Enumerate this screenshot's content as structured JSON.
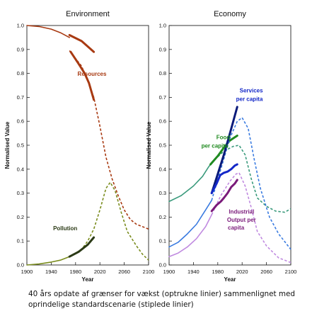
{
  "caption": {
    "line1": "40 års opdate af grænser for vækst (optrukne linier) sammenlignet med",
    "line2": "oprindelige standardscenarie (stiplede linier)"
  },
  "chart_data": [
    {
      "type": "line",
      "title": "Environment",
      "xlabel": "Year",
      "ylabel": "Normalised Value",
      "xlim": [
        1900,
        2100
      ],
      "ylim": [
        0,
        1
      ],
      "xticks": [
        "1900",
        "1940",
        "1980",
        "2020",
        "2060",
        "2100"
      ],
      "yticks": [
        "0.0",
        "0.1",
        "0.2",
        "0.3",
        "0.4",
        "0.5",
        "0.6",
        "0.7",
        "0.8",
        "0.9",
        "1.0"
      ],
      "grid": false,
      "series": [
        {
          "name": "Resources",
          "color": "#a83a12",
          "style": "solid",
          "points": [
            [
              1900,
              1.0
            ],
            [
              1920,
              0.996
            ],
            [
              1940,
              0.985
            ],
            [
              1955,
              0.97
            ],
            [
              1970,
              0.95
            ]
          ]
        },
        {
          "name": "Resources",
          "color": "#a83a12",
          "style": "dashed",
          "points": [
            [
              1970,
              0.895
            ],
            [
              1990,
              0.83
            ],
            [
              2000,
              0.77
            ],
            [
              2010,
              0.7
            ],
            [
              2020,
              0.58
            ],
            [
              2030,
              0.45
            ],
            [
              2040,
              0.36
            ],
            [
              2050,
              0.29
            ],
            [
              2060,
              0.23
            ],
            [
              2070,
              0.19
            ],
            [
              2080,
              0.17
            ],
            [
              2090,
              0.16
            ],
            [
              2100,
              0.15
            ]
          ]
        },
        {
          "name": "Resources",
          "color": "#a83a12",
          "style": "thick",
          "points": [
            [
              1970,
              0.96
            ],
            [
              1990,
              0.935
            ],
            [
              2010,
              0.89
            ]
          ]
        },
        {
          "name": "Resources",
          "color": "#a83a12",
          "style": "thick",
          "points": [
            [
              1972,
              0.89
            ],
            [
              1985,
              0.84
            ],
            [
              1995,
              0.8
            ],
            [
              2002,
              0.76
            ],
            [
              2010,
              0.69
            ]
          ]
        },
        {
          "name": "Pollution",
          "color": "#7a8c1e",
          "style": "solid",
          "points": [
            [
              1900,
              0.0
            ],
            [
              1920,
              0.004
            ],
            [
              1940,
              0.012
            ],
            [
              1955,
              0.02
            ],
            [
              1970,
              0.035
            ]
          ]
        },
        {
          "name": "Pollution",
          "color": "#7a8c1e",
          "style": "dashed",
          "points": [
            [
              1970,
              0.035
            ],
            [
              1990,
              0.065
            ],
            [
              2000,
              0.1
            ],
            [
              2010,
              0.15
            ],
            [
              2020,
              0.23
            ],
            [
              2030,
              0.32
            ],
            [
              2037,
              0.345
            ],
            [
              2045,
              0.31
            ],
            [
              2055,
              0.22
            ],
            [
              2065,
              0.14
            ],
            [
              2080,
              0.08
            ],
            [
              2090,
              0.045
            ],
            [
              2100,
              0.02
            ]
          ]
        },
        {
          "name": "Pollution",
          "color": "#2b3a16",
          "style": "thick",
          "points": [
            [
              1970,
              0.035
            ],
            [
              1985,
              0.055
            ],
            [
              2000,
              0.085
            ],
            [
              2010,
              0.115
            ]
          ]
        }
      ],
      "annotations": [
        {
          "text": "Resources",
          "x": 2007,
          "y": 0.79,
          "color": "#a83a12"
        },
        {
          "text": "Pollution",
          "x": 1963,
          "y": 0.145,
          "color": "#2b3a16"
        }
      ]
    },
    {
      "type": "line",
      "title": "Economy",
      "xlabel": "Year",
      "ylabel": "Normalised Value",
      "xlim": [
        1900,
        2100
      ],
      "ylim": [
        0,
        1
      ],
      "xticks": [
        "1900",
        "1940",
        "1980",
        "2020",
        "2060",
        "2100"
      ],
      "yticks": [
        "0.0",
        "0.1",
        "0.2",
        "0.3",
        "0.4",
        "0.5",
        "0.6",
        "0.7",
        "0.8",
        "0.9",
        "1.0"
      ],
      "grid": false,
      "series": [
        {
          "name": "Food per capita",
          "color": "#3a9a7c",
          "style": "solid",
          "points": [
            [
              1900,
              0.265
            ],
            [
              1920,
              0.29
            ],
            [
              1940,
              0.33
            ],
            [
              1955,
              0.37
            ],
            [
              1965,
              0.41
            ],
            [
              1975,
              0.44
            ]
          ]
        },
        {
          "name": "Food per capita",
          "color": "#3a9a7c",
          "style": "dashed",
          "points": [
            [
              1975,
              0.44
            ],
            [
              1990,
              0.475
            ],
            [
              2005,
              0.495
            ],
            [
              2015,
              0.5
            ],
            [
              2025,
              0.46
            ],
            [
              2035,
              0.36
            ],
            [
              2045,
              0.28
            ],
            [
              2060,
              0.245
            ],
            [
              2075,
              0.225
            ],
            [
              2090,
              0.22
            ],
            [
              2100,
              0.235
            ]
          ]
        },
        {
          "name": "Food per capita",
          "color": "#1f8a1f",
          "style": "thick",
          "points": [
            [
              1968,
              0.42
            ],
            [
              1980,
              0.455
            ],
            [
              1990,
              0.49
            ],
            [
              2000,
              0.52
            ],
            [
              2012,
              0.54
            ]
          ]
        },
        {
          "name": "Services per capita",
          "color": "#3a7be0",
          "style": "solid",
          "points": [
            [
              1900,
              0.075
            ],
            [
              1915,
              0.095
            ],
            [
              1930,
              0.13
            ],
            [
              1945,
              0.17
            ],
            [
              1960,
              0.23
            ],
            [
              1970,
              0.27
            ]
          ]
        },
        {
          "name": "Services per capita",
          "color": "#3a7be0",
          "style": "dashed",
          "points": [
            [
              1970,
              0.27
            ],
            [
              1985,
              0.4
            ],
            [
              2000,
              0.53
            ],
            [
              2012,
              0.6
            ],
            [
              2020,
              0.615
            ],
            [
              2030,
              0.57
            ],
            [
              2040,
              0.44
            ],
            [
              2050,
              0.32
            ],
            [
              2065,
              0.2
            ],
            [
              2080,
              0.13
            ],
            [
              2100,
              0.065
            ]
          ]
        },
        {
          "name": "Services per capita",
          "color": "#0a1a7a",
          "style": "thick",
          "points": [
            [
              1970,
              0.3
            ],
            [
              1980,
              0.38
            ],
            [
              1990,
              0.46
            ],
            [
              2000,
              0.55
            ],
            [
              2012,
              0.66
            ]
          ]
        },
        {
          "name": "",
          "color": "#1428c8",
          "style": "thick",
          "points": [
            [
              1970,
              0.3
            ],
            [
              1978,
              0.34
            ],
            [
              1984,
              0.375
            ],
            [
              1990,
              0.385
            ],
            [
              1996,
              0.39
            ],
            [
              2002,
              0.4
            ],
            [
              2008,
              0.415
            ],
            [
              2012,
              0.42
            ]
          ]
        },
        {
          "name": "Industrial Output per capita",
          "color": "#c08ae0",
          "style": "solid",
          "points": [
            [
              1900,
              0.035
            ],
            [
              1915,
              0.05
            ],
            [
              1930,
              0.075
            ],
            [
              1945,
              0.11
            ],
            [
              1960,
              0.16
            ],
            [
              1970,
              0.21
            ]
          ]
        },
        {
          "name": "Industrial Output per capita",
          "color": "#c08ae0",
          "style": "dashed",
          "points": [
            [
              1970,
              0.21
            ],
            [
              1985,
              0.29
            ],
            [
              2000,
              0.35
            ],
            [
              2010,
              0.38
            ],
            [
              2015,
              0.385
            ],
            [
              2025,
              0.33
            ],
            [
              2035,
              0.24
            ],
            [
              2045,
              0.14
            ],
            [
              2060,
              0.08
            ],
            [
              2080,
              0.03
            ],
            [
              2100,
              0.01
            ]
          ]
        },
        {
          "name": "Industrial Output per capita",
          "color": "#7a1a7a",
          "style": "thick",
          "points": [
            [
              1970,
              0.225
            ],
            [
              1978,
              0.25
            ],
            [
              1985,
              0.265
            ],
            [
              1990,
              0.28
            ],
            [
              1996,
              0.3
            ],
            [
              2002,
              0.325
            ],
            [
              2008,
              0.34
            ],
            [
              2012,
              0.355
            ]
          ]
        }
      ],
      "annotations": [
        {
          "text": "Food",
          "x": 1989,
          "y": 0.525,
          "color": "#1f8a1f"
        },
        {
          "text": "per capita",
          "x": 1975,
          "y": 0.49,
          "color": "#1f8a1f"
        },
        {
          "text": "Services",
          "x": 2035,
          "y": 0.72,
          "color": "#1428c8"
        },
        {
          "text": "per capita",
          "x": 2032,
          "y": 0.685,
          "color": "#1428c8"
        },
        {
          "text": "Industrial",
          "x": 2019,
          "y": 0.215,
          "color": "#7a1a7a"
        },
        {
          "text": "Output per",
          "x": 2019,
          "y": 0.18,
          "color": "#7a1a7a"
        },
        {
          "text": "capita",
          "x": 2010,
          "y": 0.148,
          "color": "#7a1a7a"
        }
      ]
    }
  ]
}
